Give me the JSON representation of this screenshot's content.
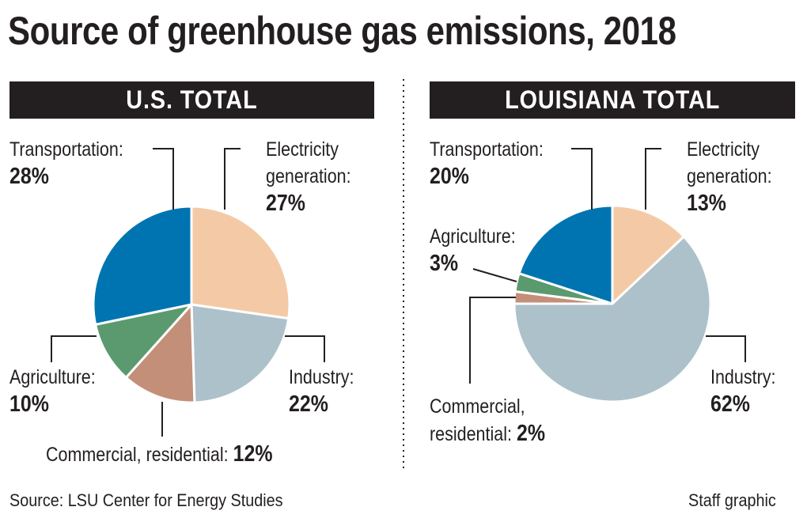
{
  "title": "Source of greenhouse gas emissions, 2018",
  "source": "Source: LSU Center for Energy Studies",
  "credit": "Staff graphic",
  "chart_data": [
    {
      "type": "pie",
      "title": "U.S. TOTAL",
      "categories": [
        "Electricity generation",
        "Industry",
        "Commercial, residential",
        "Agriculture",
        "Transportation"
      ],
      "values": [
        27,
        22,
        12,
        10,
        28
      ],
      "labels": {
        "electricity": "Electricity",
        "electricity2": "generation:",
        "industry": "Industry:",
        "commercial": "Commercial, residential:",
        "agriculture": "Agriculture:",
        "transportation": "Transportation:"
      },
      "pct": [
        "27%",
        "22%",
        "12%",
        "10%",
        "28%"
      ]
    },
    {
      "type": "pie",
      "title": "LOUISIANA TOTAL",
      "categories": [
        "Electricity generation",
        "Industry",
        "Commercial, residential",
        "Agriculture",
        "Transportation"
      ],
      "values": [
        13,
        62,
        2,
        3,
        20
      ],
      "labels": {
        "electricity": "Electricity",
        "electricity2": "generation:",
        "industry": "Industry:",
        "commercial": "Commercial,",
        "commercial2": "residential:",
        "agriculture": "Agriculture:",
        "transportation": "Transportation:"
      },
      "pct": [
        "13%",
        "62%",
        "2%",
        "3%",
        "20%"
      ]
    }
  ],
  "colors": [
    "#f4caa6",
    "#adc1ca",
    "#c48f78",
    "#5b9a6f",
    "#0074b1"
  ]
}
